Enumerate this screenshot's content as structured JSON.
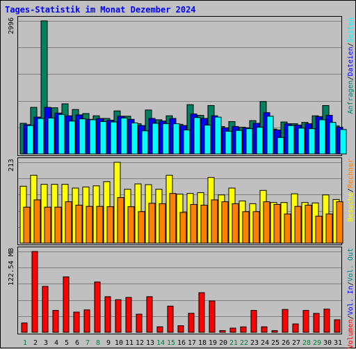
{
  "chart_data": {
    "type": "bar",
    "title": "Tages-Statistik im Monat Dezember 2024",
    "categories": [
      "1",
      "2",
      "3",
      "4",
      "5",
      "6",
      "7",
      "8",
      "9",
      "10",
      "11",
      "12",
      "13",
      "14",
      "15",
      "16",
      "17",
      "18",
      "19",
      "20",
      "21",
      "22",
      "23",
      "24",
      "25",
      "26",
      "27",
      "28",
      "29",
      "30",
      "31"
    ],
    "weekend_days": [
      1,
      7,
      8,
      14,
      15,
      21,
      22,
      28,
      29
    ],
    "colors": {
      "title": "#0000ff",
      "weekday_label": "#000000",
      "weekend_label": "#008040",
      "anfragen": "#008060",
      "dateien": "#0000ff",
      "seiten": "#00ffff",
      "besuche": "#ffff00",
      "rechner": "#ff8000",
      "volumen": "#ff0000",
      "vol_out": "#008080"
    },
    "panels": [
      {
        "id": "hits",
        "max_label": "2996",
        "ymax": 2996,
        "grid_lines": 5,
        "legend": [
          {
            "text": "Anfragen",
            "color_key": "anfragen"
          },
          {
            "text": "/",
            "color_key": "weekday_label"
          },
          {
            "text": "Dateien",
            "color_key": "dateien"
          },
          {
            "text": "/",
            "color_key": "weekday_label"
          },
          {
            "text": "Seiten",
            "color_key": "seiten"
          }
        ],
        "series": [
          {
            "name": "Anfragen",
            "color_key": "anfragen",
            "values": [
              690,
              1050,
              2996,
              1040,
              1130,
              1000,
              910,
              860,
              800,
              970,
              850,
              680,
              990,
              770,
              860,
              670,
              1110,
              870,
              1090,
              620,
              730,
              600,
              750,
              1180,
              560,
              720,
              680,
              710,
              860,
              1090,
              630
            ]
          },
          {
            "name": "Dateien",
            "color_key": "dateien",
            "values": [
              660,
              830,
              1050,
              920,
              860,
              880,
              780,
              800,
              760,
              850,
              780,
              640,
              800,
              740,
              800,
              640,
              900,
              800,
              860,
              590,
              620,
              590,
              690,
              930,
              540,
              680,
              650,
              680,
              840,
              870,
              600
            ]
          },
          {
            "name": "Seiten",
            "color_key": "seiten",
            "values": [
              640,
              800,
              810,
              890,
              740,
              790,
              770,
              730,
              720,
              810,
              700,
              520,
              690,
              680,
              680,
              540,
              820,
              650,
              830,
              510,
              530,
              570,
              600,
              850,
              370,
              640,
              580,
              570,
              770,
              710,
              550
            ]
          }
        ]
      },
      {
        "id": "visits",
        "max_label": "213",
        "ymax": 213,
        "grid_lines": 5,
        "legend": [
          {
            "text": "Besuche",
            "color_key": "besuche"
          },
          {
            "text": "/",
            "color_key": "weekday_label"
          },
          {
            "text": "Rechner",
            "color_key": "rechner"
          }
        ],
        "series": [
          {
            "name": "Besuche",
            "color_key": "besuche",
            "values": [
              150,
              179,
              155,
              155,
              155,
              145,
              148,
              151,
              162,
              213,
              142,
              156,
              154,
              142,
              179,
              129,
              131,
              133,
              173,
              127,
              145,
              111,
              104,
              139,
              107,
              107,
              130,
              107,
              106,
              127,
              115
            ]
          },
          {
            "name": "Rechner",
            "color_key": "rechner",
            "values": [
              95,
              114,
              95,
              95,
              109,
              100,
              97,
              97,
              96,
              120,
              96,
              83,
              105,
              104,
              131,
              81,
              102,
              100,
              114,
              109,
              104,
              83,
              83,
              109,
              102,
              77,
              97,
              100,
              71,
              77,
              109
            ]
          }
        ]
      },
      {
        "id": "volume",
        "max_label": "122.54 MB",
        "ymax": 122.54,
        "grid_lines": 5,
        "legend": [
          {
            "text": "Volumen",
            "color_key": "volumen"
          },
          {
            "text": "/",
            "color_key": "weekday_label"
          },
          {
            "text": "Vol. In",
            "color_key": "dateien"
          },
          {
            "text": "/",
            "color_key": "weekday_label"
          },
          {
            "text": "Vol. Out",
            "color_key": "vol_out"
          }
        ],
        "series": [
          {
            "name": "Volumen",
            "color_key": "volumen",
            "values": [
              14.2,
              122.5,
              69.6,
              33.2,
              84.1,
              30.6,
              34.0,
              76.3,
              54.0,
              49.4,
              52.9,
              27.5,
              54.0,
              8.3,
              39.7,
              10.0,
              28.8,
              60.1,
              47.5,
              2.6,
              6.3,
              8.2,
              33.2,
              8.3,
              2.5,
              34.7,
              12.7,
              33.2,
              28.6,
              35.2,
              19.0
            ]
          }
        ]
      }
    ]
  }
}
